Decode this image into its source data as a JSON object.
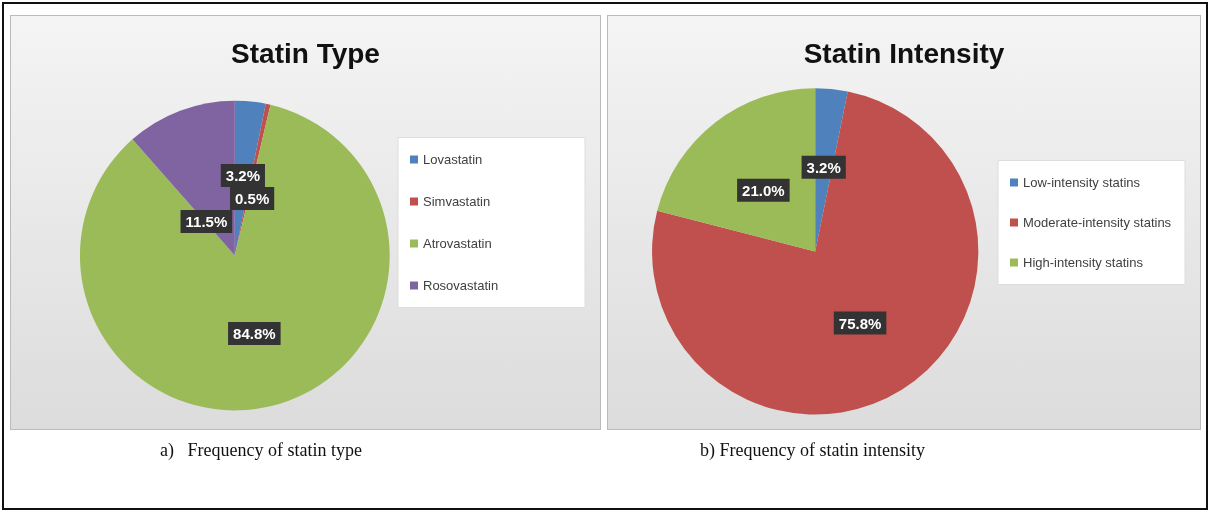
{
  "chart_data": [
    {
      "type": "pie",
      "title": "Statin Type",
      "categories": [
        "Lovastatin",
        "Simvastatin",
        "Atrovastatin",
        "Rosovastatin"
      ],
      "values": [
        3.2,
        0.5,
        84.8,
        11.5
      ],
      "colors": [
        "#4f81bd",
        "#c0504d",
        "#9bbb59",
        "#8064a2"
      ],
      "value_labels": [
        "3.2%",
        "0.5%",
        "84.8%",
        "11.5%"
      ],
      "legend": "right",
      "annotations": [
        "a)   Frequency of statin type"
      ]
    },
    {
      "type": "pie",
      "title": "Statin Intensity",
      "categories": [
        "Low-intensity statins",
        "Moderate-intensity statins",
        "High-intensity statins"
      ],
      "values": [
        3.2,
        75.8,
        21.0
      ],
      "colors": [
        "#4f81bd",
        "#c0504d",
        "#9bbb59"
      ],
      "value_labels": [
        "3.2%",
        "75.8%",
        "21.0%"
      ],
      "legend": "right",
      "annotations": [
        "b) Frequency of statin intensity"
      ]
    }
  ]
}
